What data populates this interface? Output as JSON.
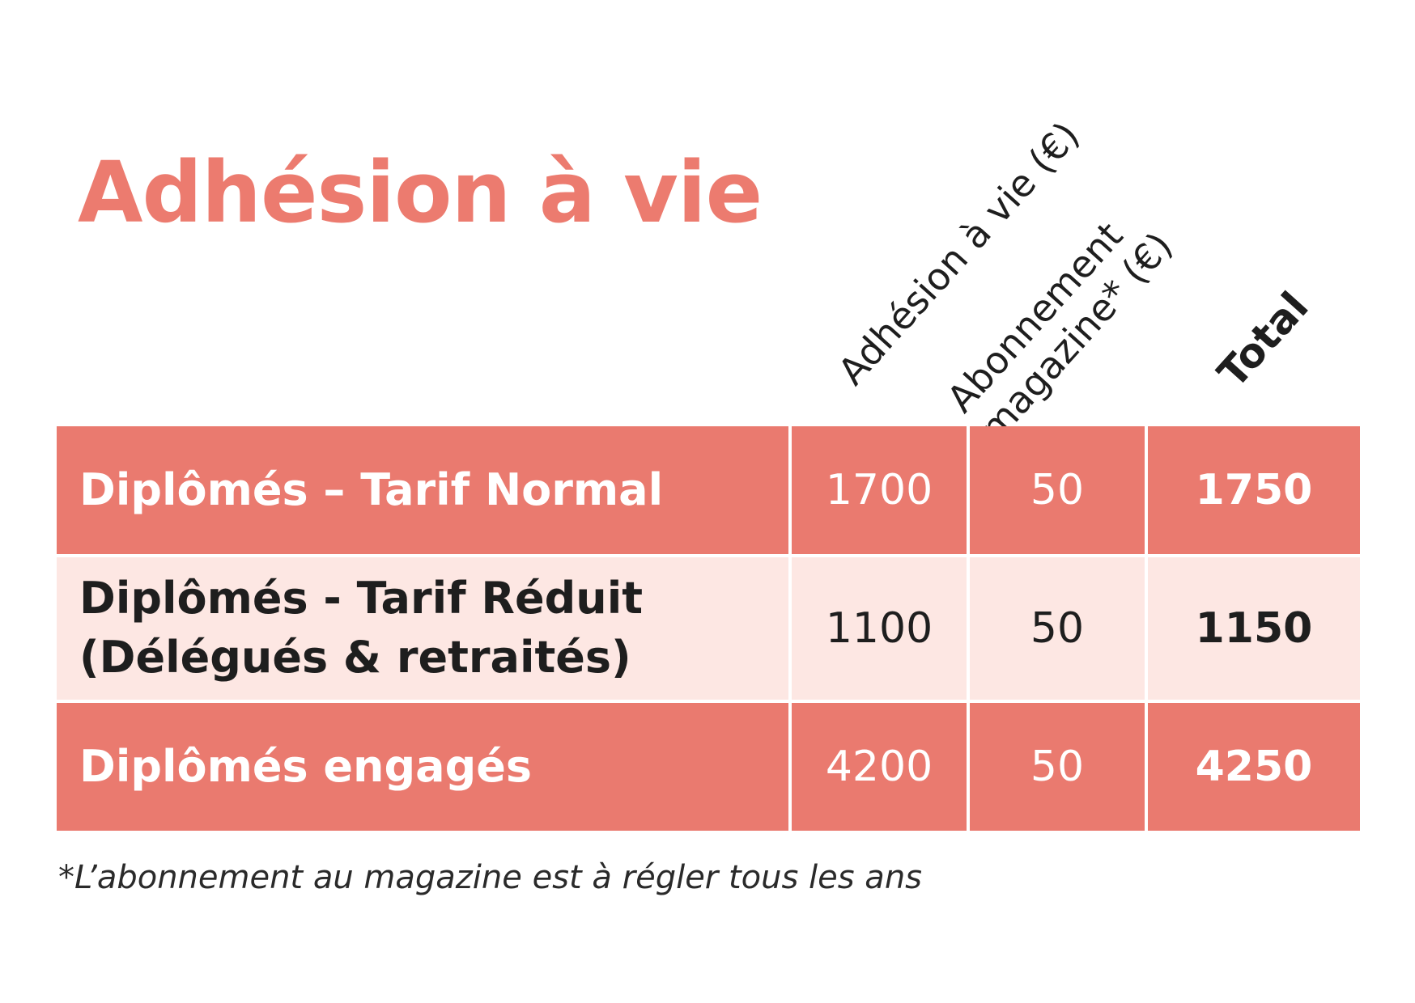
{
  "title": "Adhésion à vie",
  "columns": {
    "adhesion": "Adhésion à vie  (€)",
    "abonnement_line1": "Abonnement",
    "abonnement_line2": "magazine* (€)",
    "total": "Total"
  },
  "rows": [
    {
      "label_line1": "Diplômés – Tarif Normal",
      "label_line2": "",
      "adhesion": "1700",
      "abonnement": "50",
      "total": "1750"
    },
    {
      "label_line1": "Diplômés - Tarif Réduit",
      "label_line2": "(Délégués & retraités)",
      "adhesion": "1100",
      "abonnement": "50",
      "total": "1150"
    },
    {
      "label_line1": "Diplômés engagés",
      "label_line2": "",
      "adhesion": "4200",
      "abonnement": "50",
      "total": "4250"
    }
  ],
  "footnote": "*L’abonnement au magazine est à régler tous les ans",
  "colors": {
    "accent": "#ea7a6f",
    "row_light": "#fde7e3",
    "title": "#ec7b6f"
  }
}
